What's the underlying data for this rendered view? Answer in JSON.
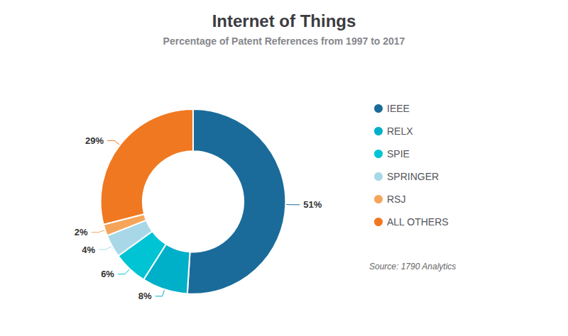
{
  "chart_data": {
    "type": "pie",
    "title": "Internet of Things",
    "subtitle": "Percentage of Patent References from 1997 to 2017",
    "categories": [
      "IEEE",
      "RELX",
      "SPIE",
      "SPRINGER",
      "RSJ",
      "ALL OTHERS"
    ],
    "values": [
      51,
      8,
      6,
      4,
      2,
      29
    ],
    "value_labels": [
      "51%",
      "8%",
      "6%",
      "4%",
      "2%",
      "29%"
    ],
    "colors": [
      "#1a6b9a",
      "#00afc8",
      "#00c4d4",
      "#a8d8e8",
      "#f5a55a",
      "#f07820"
    ],
    "data_labels": true,
    "legend": "right",
    "annotations": [
      "Source: 1790 Analytics"
    ]
  }
}
